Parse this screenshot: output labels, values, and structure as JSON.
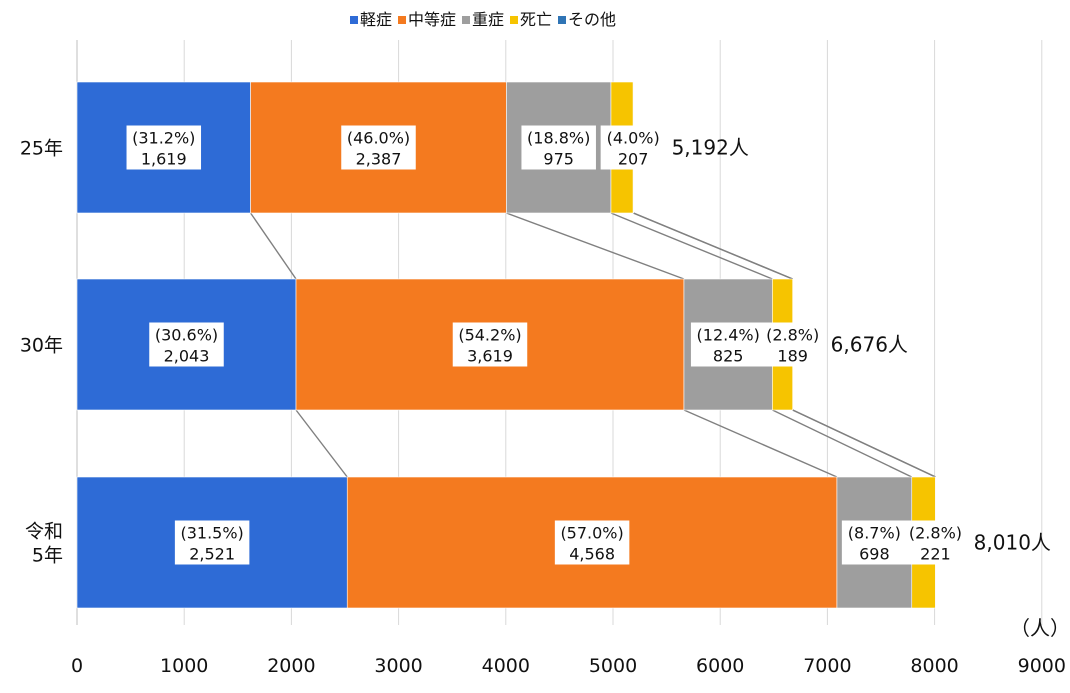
{
  "chart_data": {
    "type": "bar",
    "orientation": "horizontal",
    "stacked": true,
    "categories": [
      "25年",
      "30年",
      "令和5年"
    ],
    "category_lines": [
      [
        "25年"
      ],
      [
        "30年"
      ],
      [
        "令和",
        "5年"
      ]
    ],
    "series": [
      {
        "name": "軽症",
        "color": "#2e6bd6",
        "values": [
          1619,
          2043,
          2521
        ],
        "labels": [
          "1,619",
          "2,043",
          "2,521"
        ],
        "pct": [
          "(31.2%)",
          "(30.6%)",
          "(31.5%)"
        ]
      },
      {
        "name": "中等症",
        "color": "#f47a1f",
        "values": [
          2387,
          3619,
          4568
        ],
        "labels": [
          "2,387",
          "3,619",
          "4,568"
        ],
        "pct": [
          "(46.0%)",
          "(54.2%)",
          "(57.0%)"
        ]
      },
      {
        "name": "重症",
        "color": "#9e9e9e",
        "values": [
          975,
          825,
          698
        ],
        "labels": [
          "975",
          "825",
          "698"
        ],
        "pct": [
          "(18.8%)",
          "(12.4%)",
          "(8.7%)"
        ]
      },
      {
        "name": "死亡",
        "color": "#f6c400",
        "values": [
          207,
          189,
          221
        ],
        "labels": [
          "207",
          "189",
          "221"
        ],
        "pct": [
          "(4.0%)",
          "(2.8%)",
          "(2.8%)"
        ]
      },
      {
        "name": "その他",
        "color": "#2f74b5",
        "values": [
          4,
          0,
          2
        ],
        "labels": [
          "",
          "",
          ""
        ],
        "pct": [
          "",
          "",
          ""
        ]
      }
    ],
    "totals": [
      "5,192人",
      "6,676人",
      "8,010人"
    ],
    "total_values": [
      5192,
      6676,
      8010
    ],
    "xlim": [
      0,
      9000
    ],
    "xticks": [
      0,
      1000,
      2000,
      3000,
      4000,
      5000,
      6000,
      7000,
      8000,
      9000
    ],
    "unit_label": "（人）",
    "grid": true,
    "legend_position": "top-center",
    "series_lines": true
  }
}
